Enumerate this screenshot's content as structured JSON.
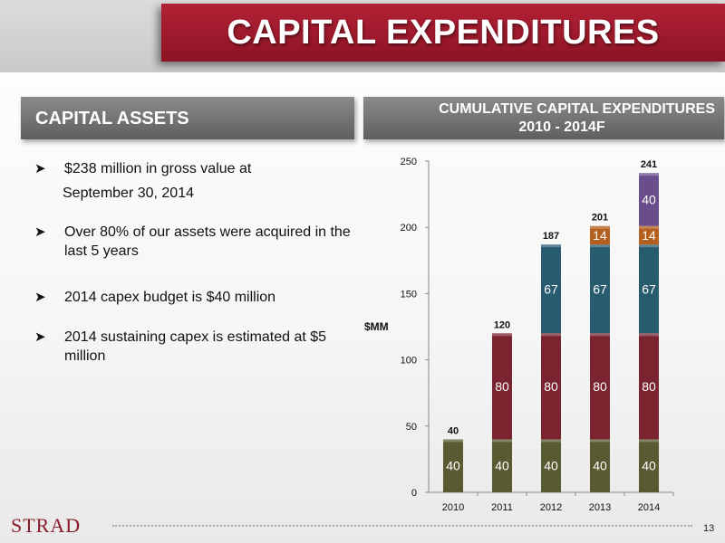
{
  "slide": {
    "title": "CAPITAL EXPENDITURES",
    "page_number": "13",
    "logo_text": "STRAD"
  },
  "left_panel": {
    "header": "CAPITAL ASSETS",
    "bullets": [
      {
        "text": "$238 million in gross value at",
        "continuation": "September 30, 2014"
      },
      {
        "text": "Over 80% of our assets were acquired in the last 5 years"
      },
      {
        "text": "2014 capex budget is $40 million"
      },
      {
        "text": "2014 sustaining capex is estimated at $5 million"
      }
    ]
  },
  "right_panel": {
    "header_line1": "CUMULATIVE CAPITAL EXPENDITURES",
    "header_line2": "2010 - 2014F"
  },
  "chart_data": {
    "type": "bar",
    "stacked": true,
    "categories": [
      "2010",
      "2011",
      "2012",
      "2013",
      "2014"
    ],
    "series": [
      {
        "values": [
          40,
          40,
          40,
          40,
          40
        ],
        "color": "#5a5a32"
      },
      {
        "values": [
          0,
          80,
          80,
          80,
          80
        ],
        "color": "#7a2430"
      },
      {
        "values": [
          0,
          0,
          67,
          67,
          67
        ],
        "color": "#275b6e"
      },
      {
        "values": [
          0,
          0,
          0,
          14,
          14
        ],
        "color": "#b45f1d"
      },
      {
        "values": [
          0,
          0,
          0,
          0,
          40
        ],
        "color": "#6a4e8c"
      }
    ],
    "totals": [
      40,
      120,
      187,
      201,
      241
    ],
    "ylabel": "$MM",
    "ylim": [
      0,
      250
    ],
    "yticks": [
      0,
      50,
      100,
      150,
      200,
      250
    ],
    "grid": false
  }
}
